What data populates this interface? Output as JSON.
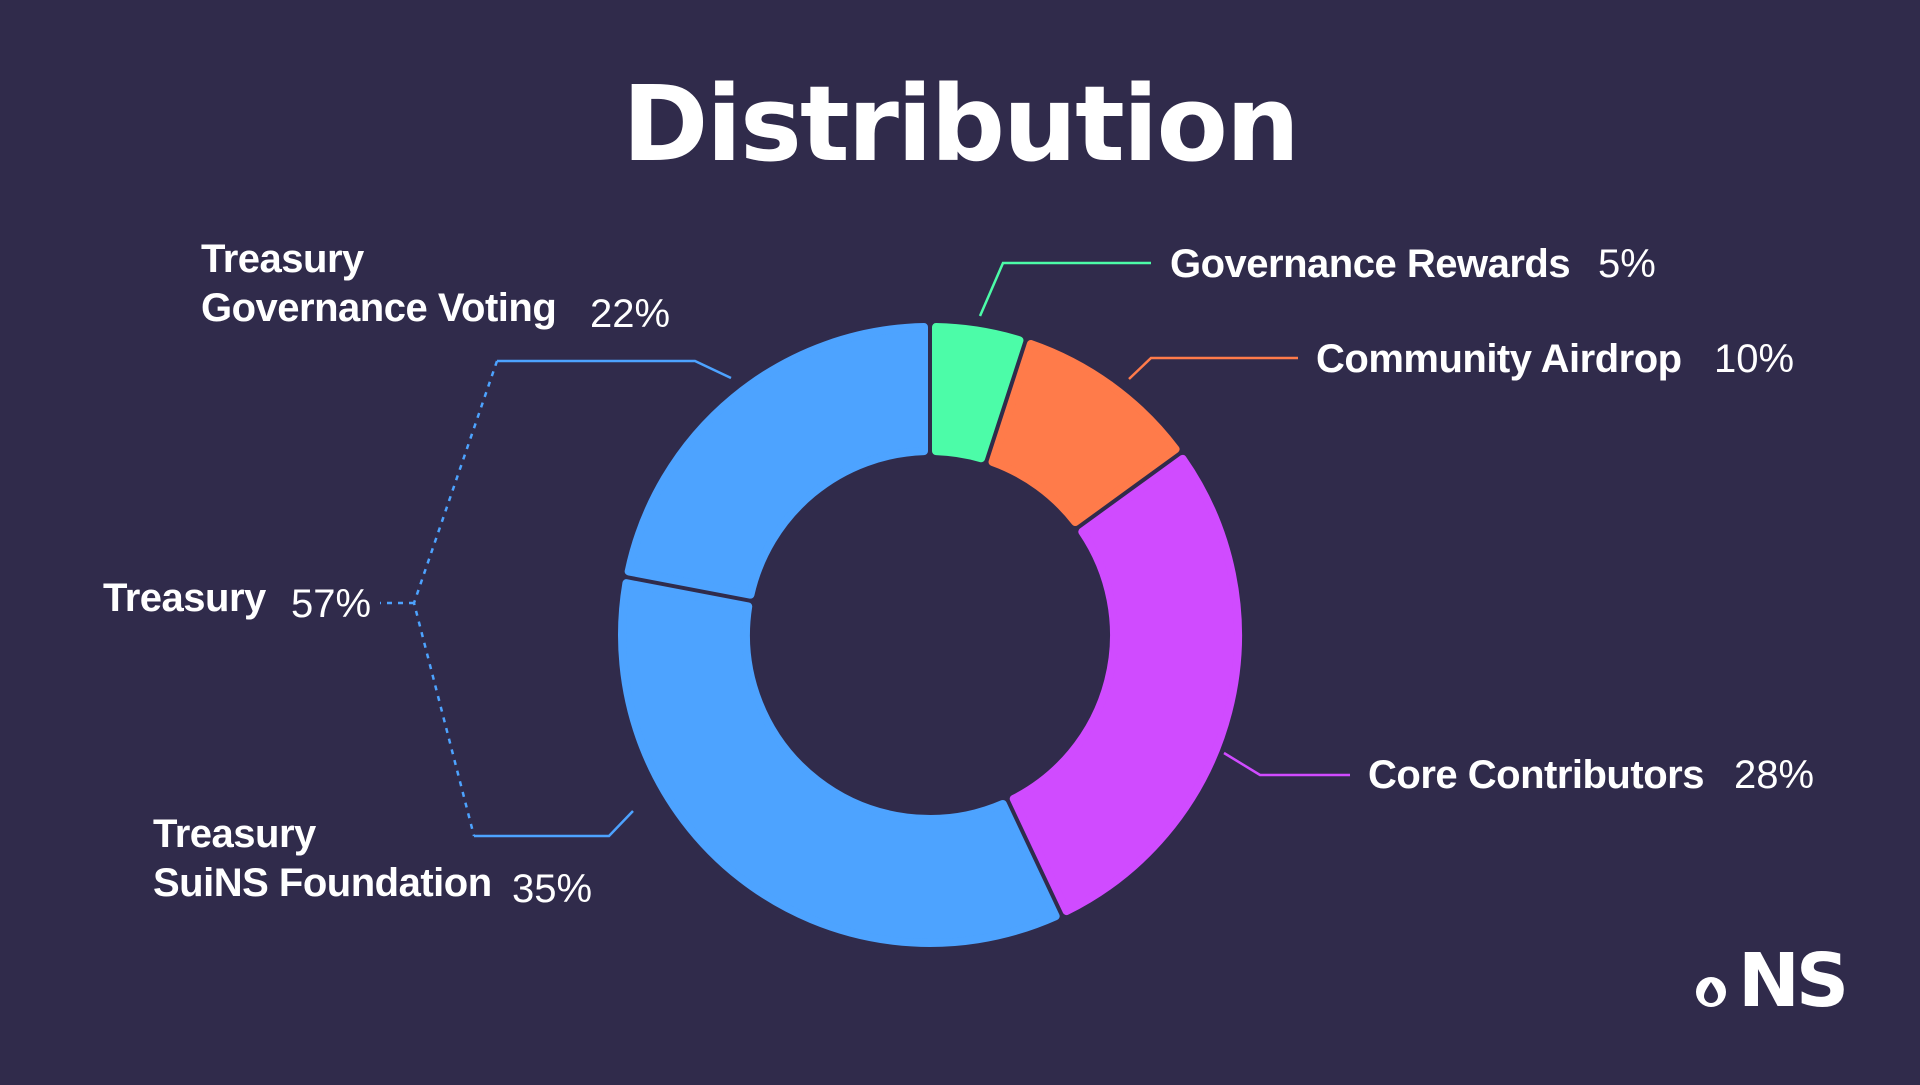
{
  "title": "Distribution",
  "colors": {
    "background": "#302b4b",
    "treasury": "#4da3ff",
    "governance_rewards": "#4cfca8",
    "community_airdrop": "#ff7b4a",
    "core_contributors": "#d04bff"
  },
  "labels": {
    "gov_voting_line1": "Treasury",
    "gov_voting_line2": "Governance Voting",
    "gov_voting_pct": "22%",
    "treasury_total": "Treasury",
    "treasury_total_pct": "57%",
    "foundation_line1": "Treasury",
    "foundation_line2": "SuiNS Foundation",
    "foundation_pct": "35%",
    "gov_rewards": "Governance Rewards",
    "gov_rewards_pct": "5%",
    "airdrop": "Community Airdrop",
    "airdrop_pct": "10%",
    "core": "Core Contributors",
    "core_pct": "28%"
  },
  "logo": {
    "text": "NS",
    "icon": "sui-drop-icon"
  },
  "chart_data": {
    "type": "pie",
    "variant": "donut",
    "title": "Distribution",
    "slices": [
      {
        "label": "Governance Rewards",
        "value": 5,
        "color": "#4cfca8"
      },
      {
        "label": "Community Airdrop",
        "value": 10,
        "color": "#ff7b4a"
      },
      {
        "label": "Core Contributors",
        "value": 28,
        "color": "#d04bff"
      },
      {
        "label": "Treasury SuiNS Foundation",
        "value": 35,
        "color": "#4da3ff"
      },
      {
        "label": "Treasury Governance Voting",
        "value": 22,
        "color": "#4da3ff"
      }
    ],
    "groups": [
      {
        "label": "Treasury",
        "value": 57,
        "members": [
          "Treasury SuiNS Foundation",
          "Treasury Governance Voting"
        ]
      }
    ]
  }
}
